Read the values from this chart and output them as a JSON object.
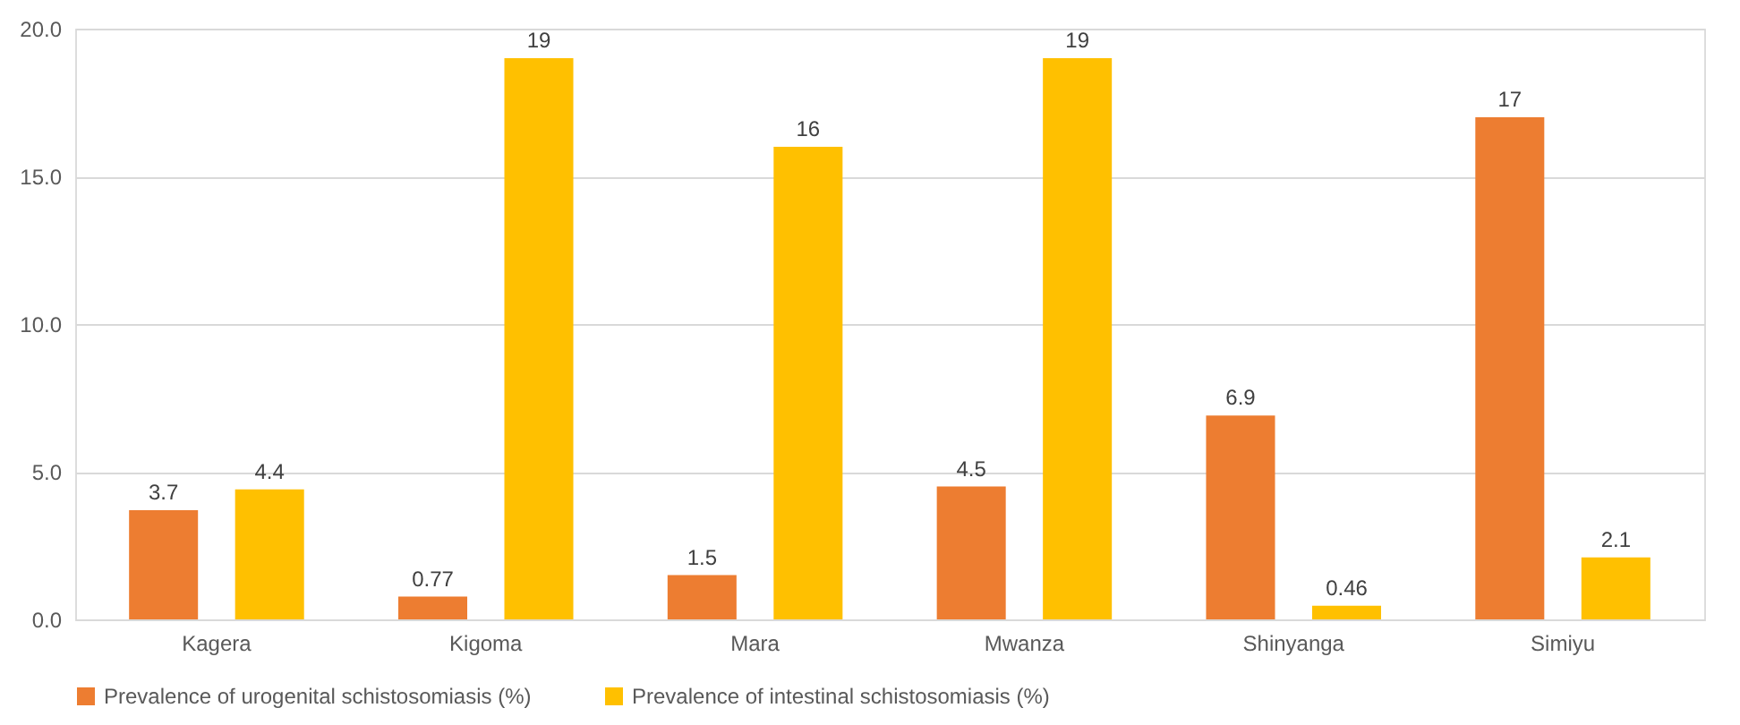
{
  "chart_data": {
    "type": "bar",
    "categories": [
      "Kagera",
      "Kigoma",
      "Mara",
      "Mwanza",
      "Shinyanga",
      "Simiyu"
    ],
    "series": [
      {
        "name": "Prevalence of urogenital schistosomiasis (%)",
        "color": "#ed7d31",
        "values": [
          3.7,
          0.77,
          1.5,
          4.5,
          6.9,
          17
        ]
      },
      {
        "name": "Prevalence of intestinal schistosomiasis (%)",
        "color": "#ffc000",
        "values": [
          4.4,
          19,
          16,
          19,
          0.46,
          2.1
        ]
      }
    ],
    "ylim": [
      0,
      20
    ],
    "yticks": [
      {
        "value": 0,
        "label": "0.0"
      },
      {
        "value": 5,
        "label": "5.0"
      },
      {
        "value": 10,
        "label": "10.0"
      },
      {
        "value": 15,
        "label": "15.0"
      },
      {
        "value": 20,
        "label": "20.0"
      }
    ],
    "grid": "y",
    "legend": "bottom",
    "data_labels": true
  }
}
